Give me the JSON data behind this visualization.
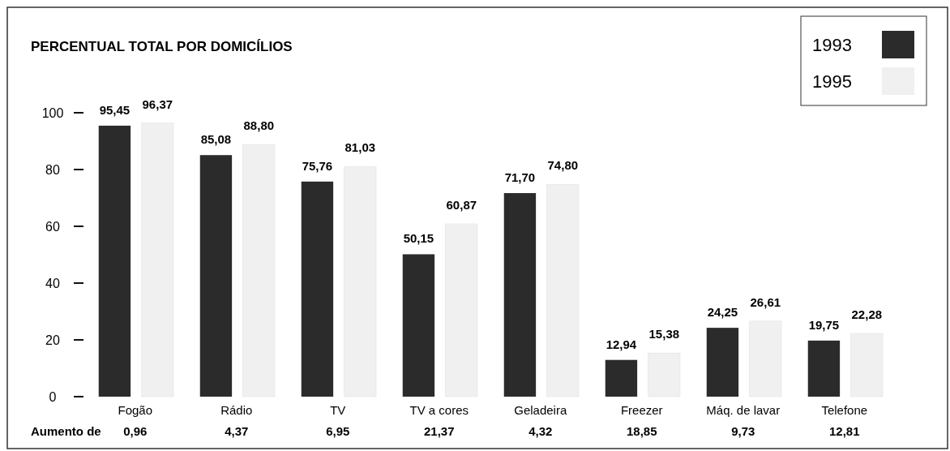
{
  "chart_data": {
    "type": "bar",
    "title": "PERCENTUAL TOTAL POR DOMICÍLIOS",
    "categories": [
      "Fogão",
      "Rádio",
      "TV",
      "TV a cores",
      "Geladeira",
      "Freezer",
      "Máq. de lavar",
      "Telefone"
    ],
    "series": [
      {
        "name": "1993",
        "color": "#2b2b2b",
        "values": [
          95.45,
          85.08,
          75.76,
          50.15,
          71.7,
          12.94,
          24.25,
          19.75
        ],
        "value_labels": [
          "95,45",
          "85,08",
          "75,76",
          "50,15",
          "71,70",
          "12,94",
          "24,25",
          "19,75"
        ]
      },
      {
        "name": "1995",
        "color": "#f0f0f0",
        "values": [
          96.37,
          88.8,
          81.03,
          60.87,
          74.8,
          15.38,
          26.61,
          22.28
        ],
        "value_labels": [
          "96,37",
          "88,80",
          "81,03",
          "60,87",
          "74,80",
          "15,38",
          "26,61",
          "22,28"
        ]
      }
    ],
    "ylim": [
      0,
      100
    ],
    "yticks": [
      0,
      20,
      40,
      60,
      80,
      100
    ],
    "grid": false,
    "legend": "top right",
    "annotations": [
      "Aumento de",
      "0,96",
      "4,37",
      "6,95",
      "21,37",
      "4,32",
      "18,85",
      "9,73",
      "12,81"
    ]
  }
}
